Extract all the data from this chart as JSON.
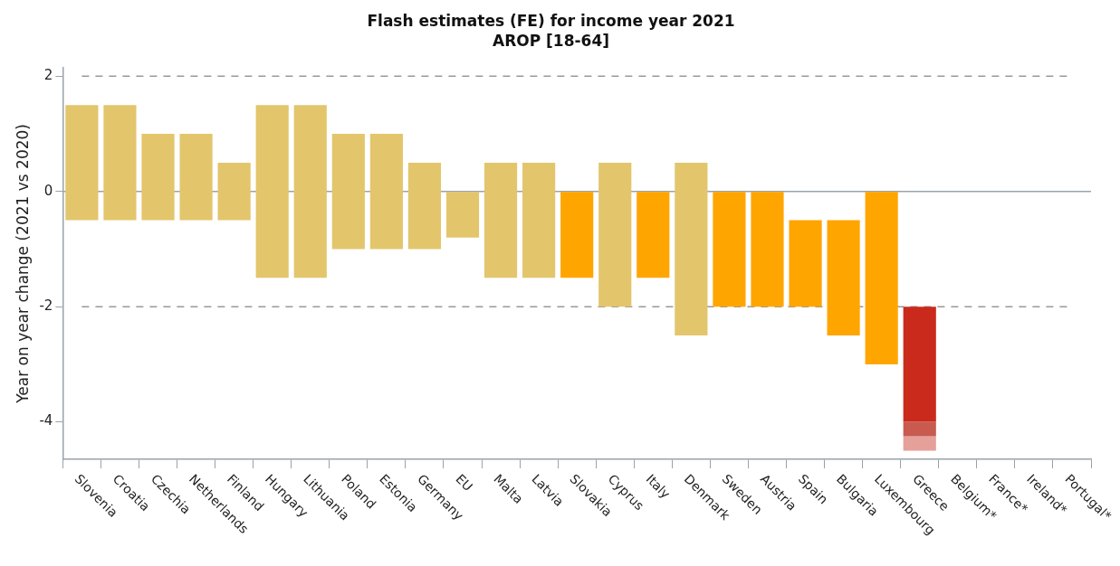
{
  "chart_data": {
    "type": "bar",
    "title": "Flash estimates (FE) for income year 2021",
    "subtitle": "AROP [18-64]",
    "ylabel": "Year on year change (2021 vs 2020)",
    "categories": [
      "Slovenia",
      "Croatia",
      "Czechia",
      "Netherlands",
      "Finland",
      "Hungary",
      "Lithuania",
      "Poland",
      "Estonia",
      "Germany",
      "EU",
      "Malta",
      "Latvia",
      "Slovakia",
      "Cyprus",
      "Italy",
      "Denmark",
      "Sweden",
      "Austria",
      "Spain",
      "Bulgaria",
      "Luxembourg",
      "Greece",
      "Belgium*",
      "France*",
      "Ireland*",
      "Portugal*"
    ],
    "series": [
      {
        "values": [
          2,
          2,
          1.5,
          1.5,
          1,
          3,
          3,
          2,
          2,
          1.5,
          0.8,
          2,
          2,
          1.5,
          2.5,
          1.5,
          3,
          2,
          2,
          1.5,
          2,
          3,
          2,
          null,
          null,
          null,
          null
        ],
        "base": [
          -0.5,
          -0.5,
          -0.5,
          -0.5,
          -0.5,
          -1.5,
          -1.5,
          -1,
          -1,
          -1,
          -0.8,
          -1.5,
          -1.5,
          -1.5,
          -2,
          -1.5,
          -2.5,
          -2,
          -2,
          -2,
          -2.5,
          -3,
          -4,
          null,
          null,
          null,
          null
        ],
        "colors": [
          "#e3c56c",
          "#e3c56c",
          "#e3c56c",
          "#e3c56c",
          "#e3c56c",
          "#e3c56c",
          "#e3c56c",
          "#e3c56c",
          "#e3c56c",
          "#e3c56c",
          "#e3c56c",
          "#e3c56c",
          "#e3c56c",
          "#ffa500",
          "#e3c56c",
          "#ffa500",
          "#e3c56c",
          "#ffa500",
          "#ffa500",
          "#ffa500",
          "#ffa500",
          "#ffa500",
          "#c92a1c",
          "#e3c56c",
          "#e3c56c",
          "#e3c56c",
          "#e3c56c"
        ]
      },
      {
        "values": [
          null,
          null,
          null,
          null,
          null,
          null,
          null,
          null,
          null,
          null,
          null,
          null,
          null,
          null,
          null,
          null,
          null,
          null,
          null,
          null,
          null,
          null,
          0.25,
          null,
          null,
          null,
          null
        ],
        "base": [
          null,
          null,
          null,
          null,
          null,
          null,
          null,
          null,
          null,
          null,
          null,
          null,
          null,
          null,
          null,
          null,
          null,
          null,
          null,
          null,
          null,
          null,
          -4.25,
          null,
          null,
          null,
          null
        ],
        "color": "#c85a50"
      },
      {
        "values": [
          null,
          null,
          null,
          null,
          null,
          null,
          null,
          null,
          null,
          null,
          null,
          null,
          null,
          null,
          null,
          null,
          null,
          null,
          null,
          null,
          null,
          null,
          0.25,
          null,
          null,
          null,
          null
        ],
        "base": [
          null,
          null,
          null,
          null,
          null,
          null,
          null,
          null,
          null,
          null,
          null,
          null,
          null,
          null,
          null,
          null,
          null,
          null,
          null,
          null,
          null,
          null,
          -4.5,
          null,
          null,
          null,
          null
        ],
        "color": "#e5a09a"
      }
    ],
    "ylim": [
      -4.65,
      2.15
    ],
    "yticks": [
      2,
      0,
      -2,
      -4
    ],
    "ref_lines": [
      {
        "axis": "y",
        "value": 2,
        "color": "#999999",
        "line_style": "dashed"
      },
      {
        "axis": "y",
        "value": -2,
        "color": "#999999",
        "line_style": "dashed"
      },
      {
        "axis": "y",
        "value": 0,
        "color": "#9aa3aa",
        "line_style": "solid"
      }
    ],
    "grid": false,
    "legend": false
  }
}
